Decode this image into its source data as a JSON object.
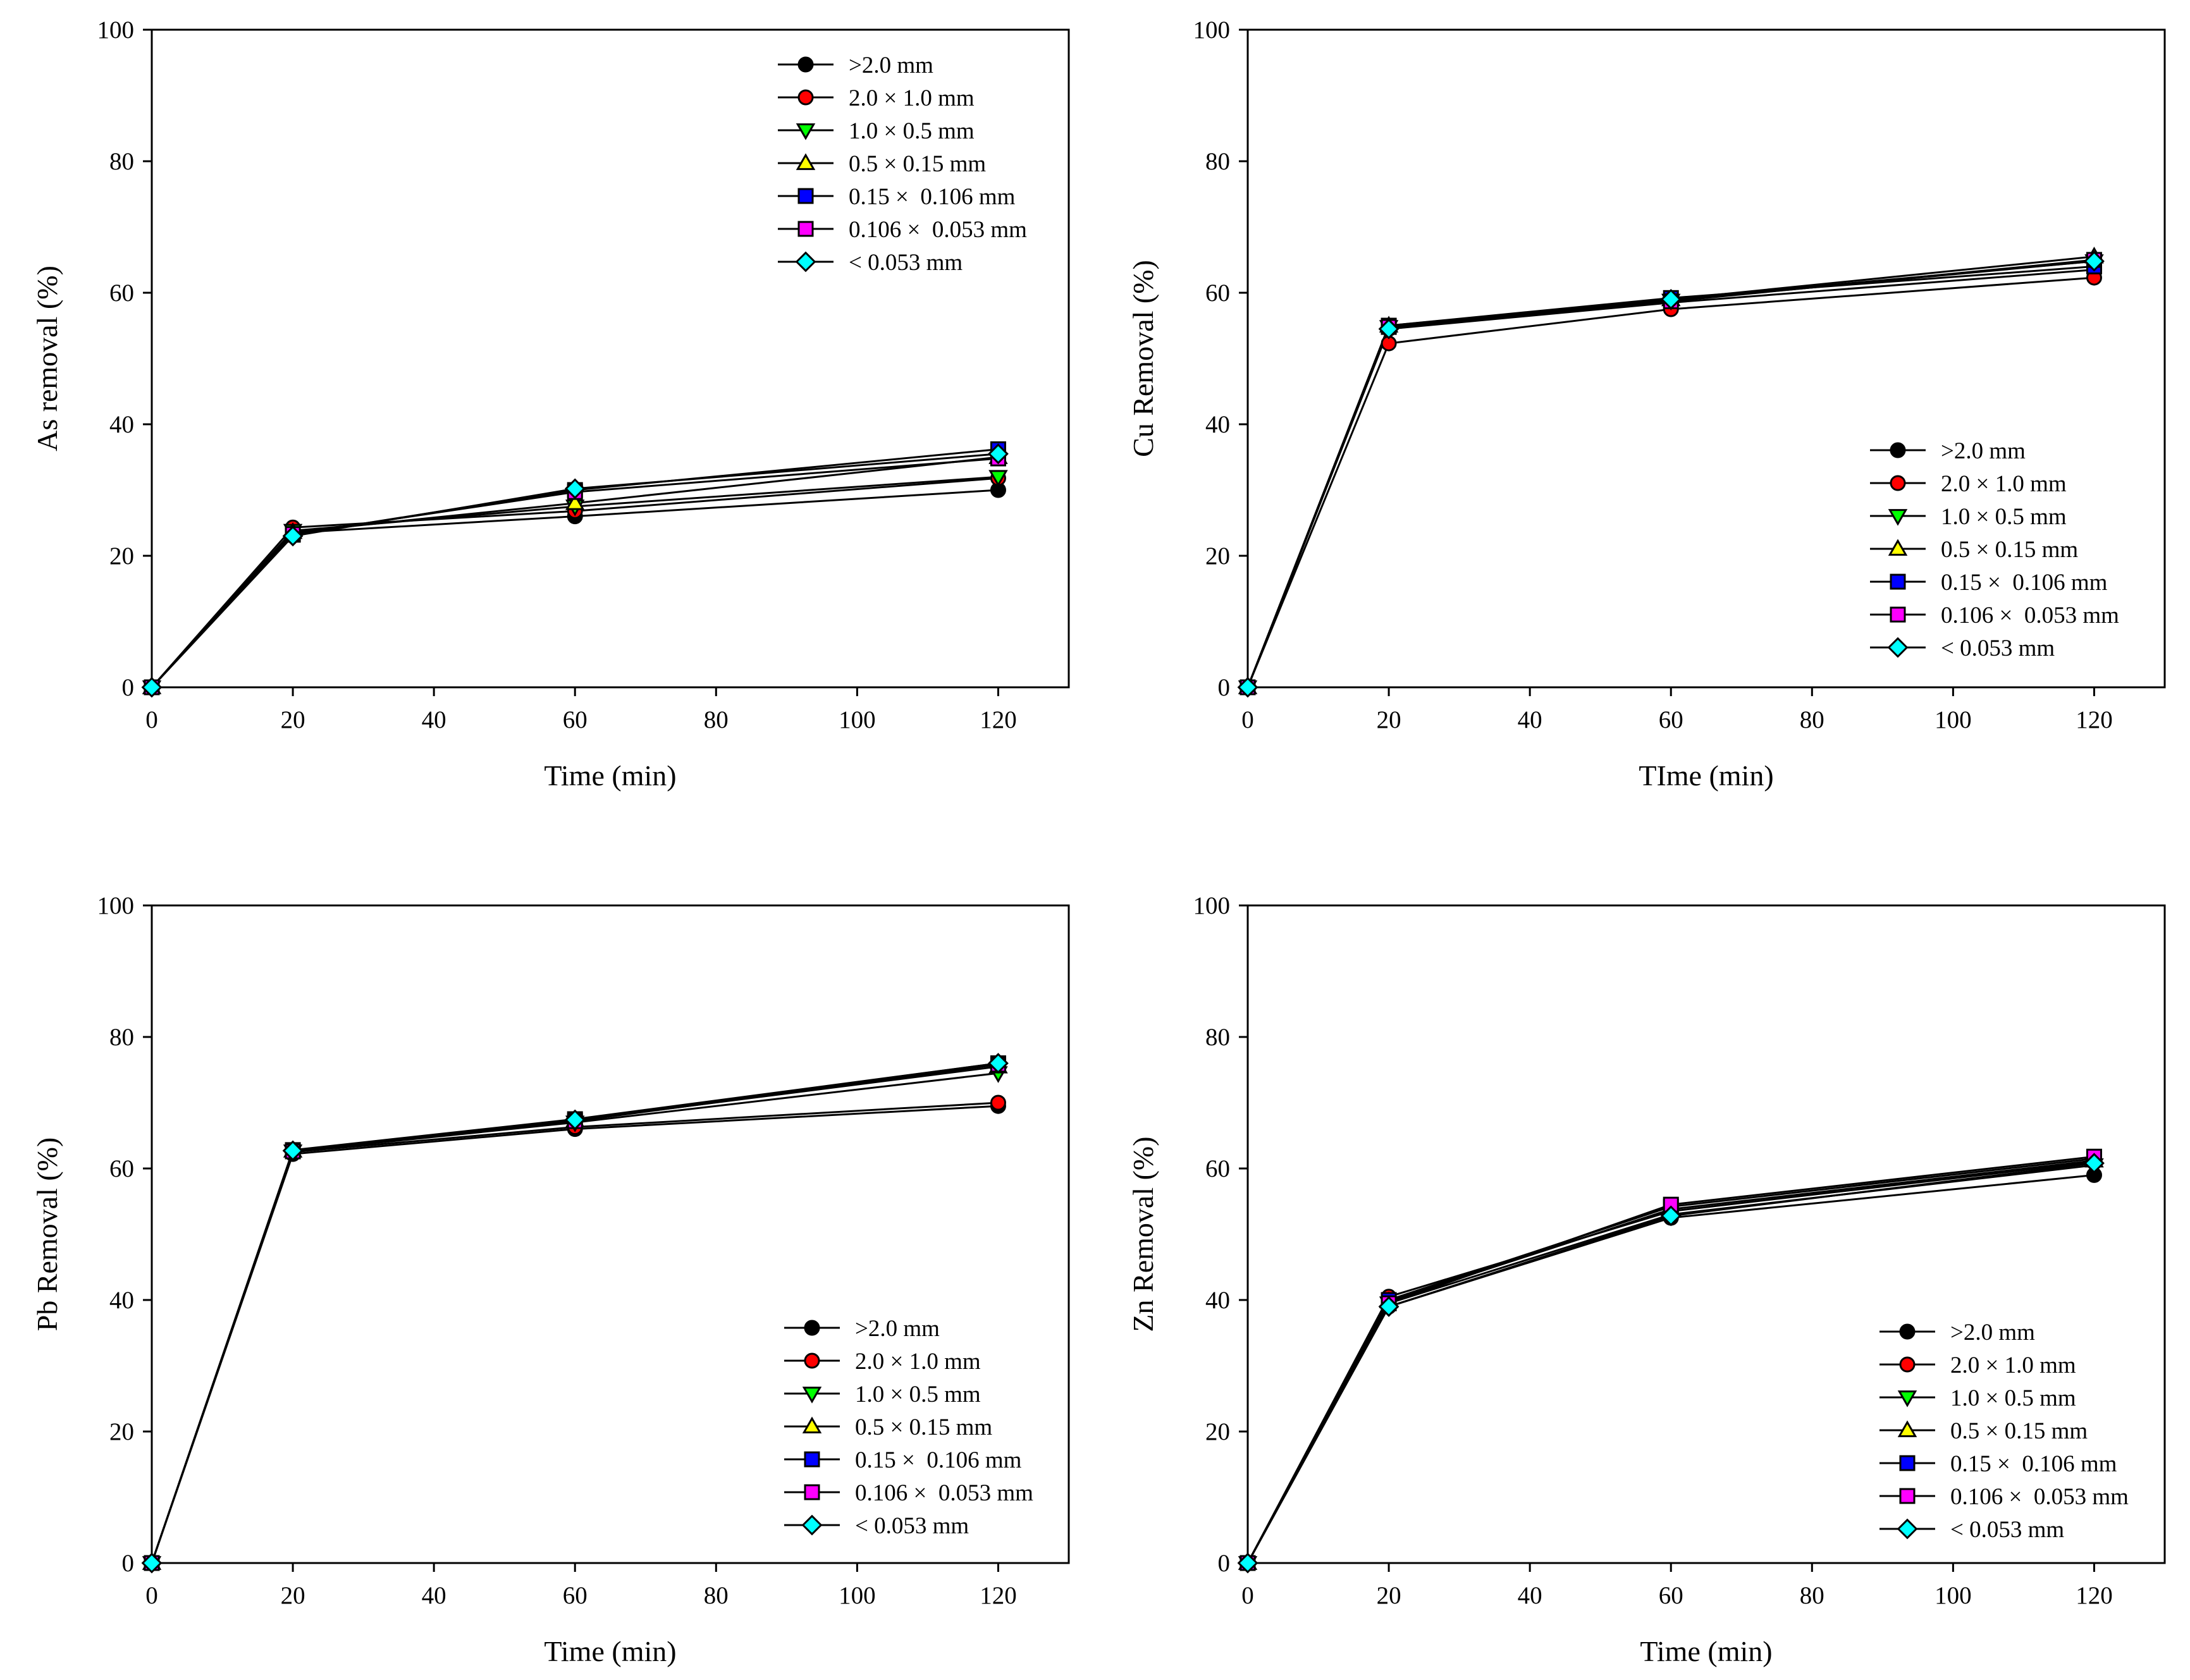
{
  "chart_data": [
    {
      "type": "line",
      "title": "",
      "xlabel": "Time (min)",
      "ylabel": "As removal (%)",
      "xlim": [
        0,
        130
      ],
      "ylim": [
        0,
        100
      ],
      "x_ticks": [
        0,
        20,
        40,
        60,
        80,
        100,
        120
      ],
      "y_ticks": [
        0,
        20,
        40,
        60,
        80,
        100
      ],
      "x": [
        0,
        20,
        60,
        120
      ],
      "legend_position": "top-right",
      "grid": false,
      "series": [
        {
          "name": ">2.0 mm",
          "values": [
            0,
            23.5,
            26.0,
            30.0
          ]
        },
        {
          "name": "2.0 × 1.0 mm",
          "values": [
            0,
            24.3,
            26.8,
            31.8
          ]
        },
        {
          "name": "1.0 × 0.5 mm",
          "values": [
            0,
            23.8,
            27.5,
            32.0
          ]
        },
        {
          "name": "0.5 × 0.15 mm",
          "values": [
            0,
            23.6,
            28.0,
            35.0
          ]
        },
        {
          "name": "0.15 ×  0.106 mm",
          "values": [
            0,
            23.2,
            30.0,
            36.2
          ]
        },
        {
          "name": "0.106 ×  0.053 mm",
          "values": [
            0,
            23.3,
            29.7,
            34.8
          ]
        },
        {
          "name": "< 0.053 mm",
          "values": [
            0,
            23.0,
            30.2,
            35.5
          ]
        }
      ]
    },
    {
      "type": "line",
      "title": "",
      "xlabel": "TIme (min)",
      "ylabel": "Cu Removal (%)",
      "xlim": [
        0,
        130
      ],
      "ylim": [
        0,
        100
      ],
      "x_ticks": [
        0,
        20,
        40,
        60,
        80,
        100,
        120
      ],
      "y_ticks": [
        0,
        20,
        40,
        60,
        80,
        100
      ],
      "x": [
        0,
        20,
        60,
        120
      ],
      "legend_position": "bottom-right",
      "grid": false,
      "series": [
        {
          "name": ">2.0 mm",
          "values": [
            0,
            54.5,
            58.5,
            63.5
          ]
        },
        {
          "name": "2.0 × 1.0 mm",
          "values": [
            0,
            52.3,
            57.5,
            62.3
          ]
        },
        {
          "name": "1.0 × 0.5 mm",
          "values": [
            0,
            54.8,
            58.8,
            64.8
          ]
        },
        {
          "name": "0.5 × 0.15 mm",
          "values": [
            0,
            55.0,
            59.0,
            65.5
          ]
        },
        {
          "name": "0.15 ×  0.106 mm",
          "values": [
            0,
            55.0,
            59.2,
            64.0
          ]
        },
        {
          "name": "0.106 ×  0.053 mm",
          "values": [
            0,
            54.8,
            58.7,
            65.0
          ]
        },
        {
          "name": "< 0.053 mm",
          "values": [
            0,
            54.5,
            59.0,
            64.8
          ]
        }
      ]
    },
    {
      "type": "line",
      "title": "",
      "xlabel": "Time (min)",
      "ylabel": "Pb Removal (%)",
      "xlim": [
        0,
        130
      ],
      "ylim": [
        0,
        100
      ],
      "x_ticks": [
        0,
        20,
        40,
        60,
        80,
        100,
        120
      ],
      "y_ticks": [
        0,
        20,
        40,
        60,
        80,
        100
      ],
      "x": [
        0,
        20,
        60,
        120
      ],
      "legend_position": "bottom-right",
      "grid": false,
      "series": [
        {
          "name": ">2.0 mm",
          "values": [
            0,
            62.2,
            66.0,
            69.5
          ]
        },
        {
          "name": "2.0 × 1.0 mm",
          "values": [
            0,
            62.5,
            66.3,
            70.0
          ]
        },
        {
          "name": "1.0 × 0.5 mm",
          "values": [
            0,
            62.6,
            67.0,
            74.5
          ]
        },
        {
          "name": "0.5 × 0.15 mm",
          "values": [
            0,
            62.7,
            67.3,
            75.5
          ]
        },
        {
          "name": "0.15 ×  0.106 mm",
          "values": [
            0,
            62.8,
            67.5,
            76.0
          ]
        },
        {
          "name": "0.106 ×  0.053 mm",
          "values": [
            0,
            62.6,
            67.2,
            75.8
          ]
        },
        {
          "name": "< 0.053 mm",
          "values": [
            0,
            62.7,
            67.4,
            76.0
          ]
        }
      ]
    },
    {
      "type": "line",
      "title": "",
      "xlabel": "Time (min)",
      "ylabel": "Zn Removal (%)",
      "xlim": [
        0,
        130
      ],
      "ylim": [
        0,
        100
      ],
      "x_ticks": [
        0,
        20,
        40,
        60,
        80,
        100,
        120
      ],
      "y_ticks": [
        0,
        20,
        40,
        60,
        80,
        100
      ],
      "x": [
        0,
        20,
        60,
        120
      ],
      "legend_position": "bottom-right",
      "grid": false,
      "series": [
        {
          "name": ">2.0 mm",
          "values": [
            0,
            39.0,
            52.5,
            59.0
          ]
        },
        {
          "name": "2.0 × 1.0 mm",
          "values": [
            0,
            40.5,
            53.5,
            61.0
          ]
        },
        {
          "name": "1.0 × 0.5 mm",
          "values": [
            0,
            39.5,
            53.0,
            60.5
          ]
        },
        {
          "name": "0.5 × 0.15 mm",
          "values": [
            0,
            39.8,
            53.8,
            61.2
          ]
        },
        {
          "name": "0.15 ×  0.106 mm",
          "values": [
            0,
            40.0,
            54.2,
            61.5
          ]
        },
        {
          "name": "0.106 ×  0.053 mm",
          "values": [
            0,
            39.5,
            54.5,
            61.8
          ]
        },
        {
          "name": "< 0.053 mm",
          "values": [
            0,
            39.0,
            52.8,
            60.8
          ]
        }
      ]
    }
  ],
  "marker_styles": [
    {
      "shape": "circle",
      "fill": "#000000"
    },
    {
      "shape": "circle",
      "fill": "#ff0000"
    },
    {
      "shape": "triangle-down",
      "fill": "#00ff00"
    },
    {
      "shape": "triangle-up",
      "fill": "#ffff00"
    },
    {
      "shape": "square",
      "fill": "#0000ff"
    },
    {
      "shape": "square",
      "fill": "#ff00ff"
    },
    {
      "shape": "diamond",
      "fill": "#00ffff"
    }
  ]
}
